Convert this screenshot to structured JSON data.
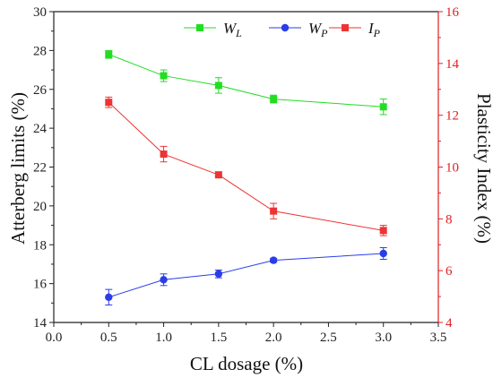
{
  "chart_data": {
    "type": "line",
    "xlabel": "CL dosage (%)",
    "ylabel_left": "Atterberg limits (%)",
    "ylabel_right": "Plasticity Index (%)",
    "xlim": [
      0.0,
      3.5
    ],
    "ylim_left": [
      14,
      30
    ],
    "ylim_right": [
      4,
      16
    ],
    "x_ticks": [
      "0.0",
      "0.5",
      "1.0",
      "1.5",
      "2.0",
      "2.5",
      "3.0",
      "3.5"
    ],
    "y_left_ticks": [
      "14",
      "16",
      "18",
      "20",
      "22",
      "24",
      "26",
      "28",
      "30"
    ],
    "y_right_ticks": [
      "4",
      "6",
      "8",
      "10",
      "12",
      "14",
      "16"
    ],
    "grid": false,
    "legend_position": "top",
    "series": [
      {
        "name": "W",
        "name_sub": "L",
        "axis": "left",
        "marker": "square",
        "color": "#22dd22",
        "x": [
          0.5,
          1.0,
          1.5,
          2.0,
          3.0
        ],
        "values": [
          27.8,
          26.7,
          26.2,
          25.5,
          25.1
        ],
        "errors": [
          0.2,
          0.3,
          0.4,
          0.2,
          0.4
        ]
      },
      {
        "name": "W",
        "name_sub": "P",
        "axis": "left",
        "marker": "circle",
        "color": "#2a3de8",
        "x": [
          0.5,
          1.0,
          1.5,
          2.0,
          3.0
        ],
        "values": [
          15.3,
          16.2,
          16.5,
          17.2,
          17.55
        ],
        "errors": [
          0.4,
          0.3,
          0.2,
          0.1,
          0.3
        ]
      },
      {
        "name": "I",
        "name_sub": "P",
        "axis": "right",
        "marker": "square",
        "color": "#ee3333",
        "x": [
          0.5,
          1.0,
          1.5,
          2.0,
          3.0
        ],
        "values": [
          12.5,
          10.5,
          9.7,
          8.3,
          7.55
        ],
        "errors": [
          0.2,
          0.3,
          0.1,
          0.3,
          0.2
        ]
      }
    ]
  }
}
